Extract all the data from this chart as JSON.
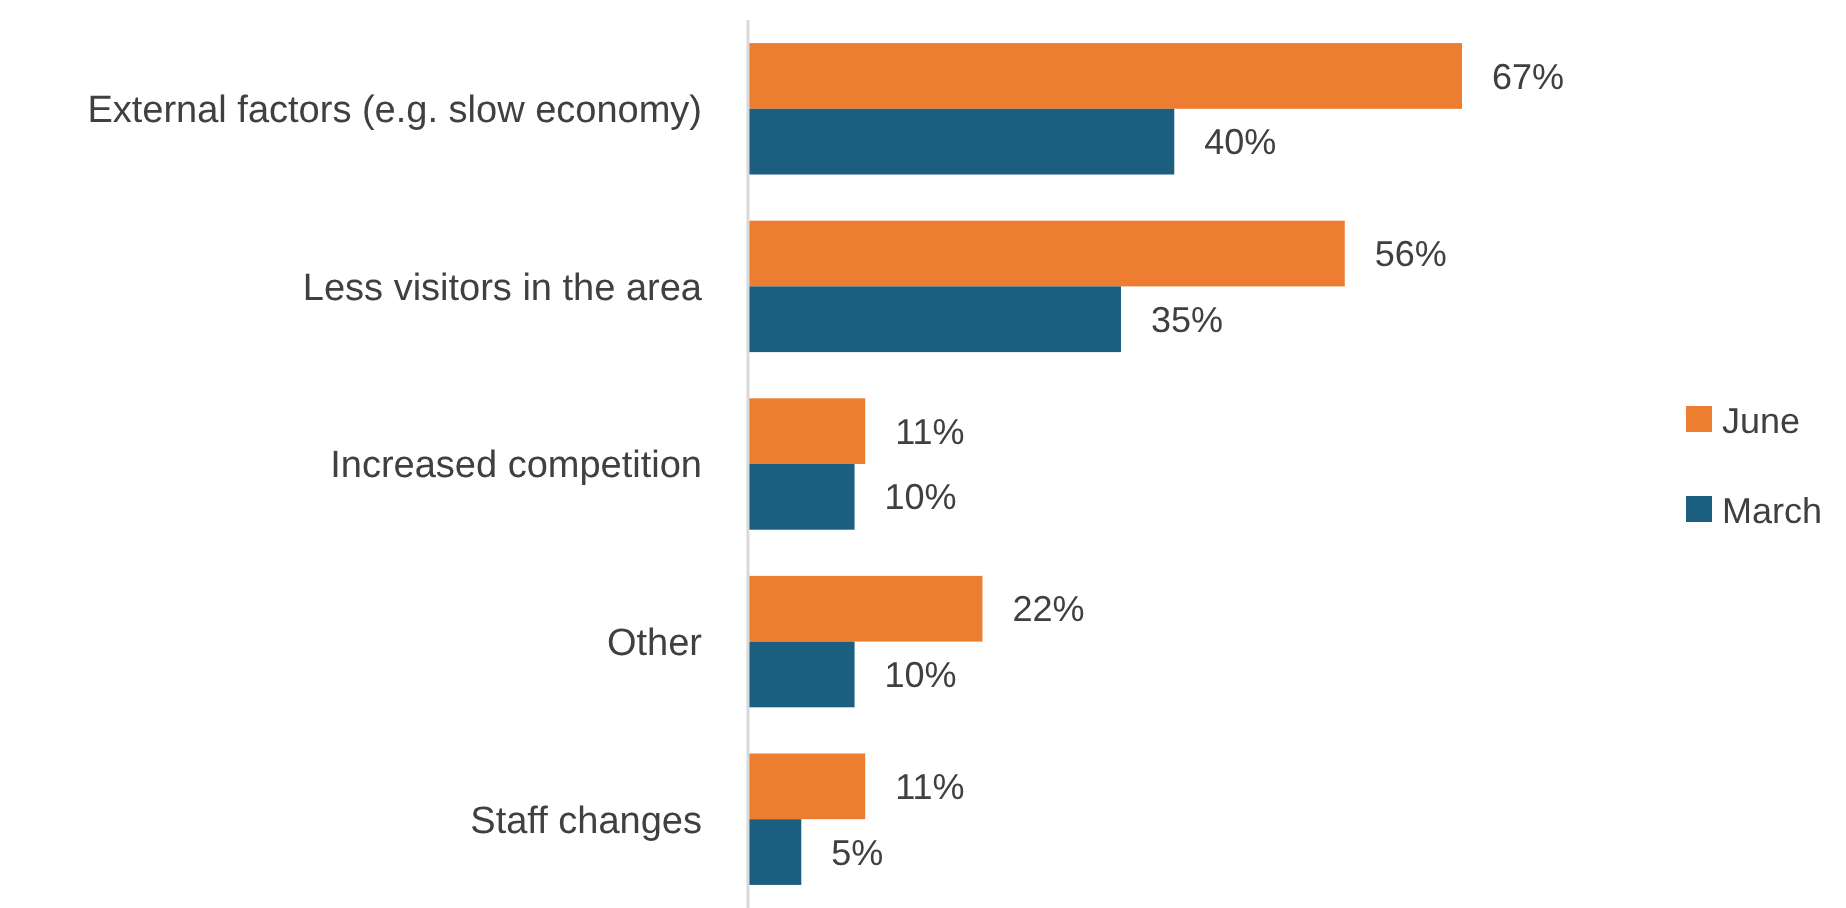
{
  "chart_data": {
    "type": "bar",
    "orientation": "horizontal",
    "categories": [
      "External factors (e.g. slow economy)",
      "Less visitors in the area",
      "Increased competition",
      "Other",
      "Staff changes"
    ],
    "series": [
      {
        "name": "June",
        "color": "#ed7d31",
        "values": [
          67,
          56,
          11,
          22,
          11
        ],
        "value_labels": [
          "67%",
          "56%",
          "11%",
          "22%",
          "11%"
        ]
      },
      {
        "name": "March",
        "color": "#1b5e80",
        "values": [
          40,
          35,
          10,
          10,
          5
        ],
        "value_labels": [
          "40%",
          "35%",
          "10%",
          "10%",
          "5%"
        ]
      }
    ],
    "legend": "right"
  }
}
